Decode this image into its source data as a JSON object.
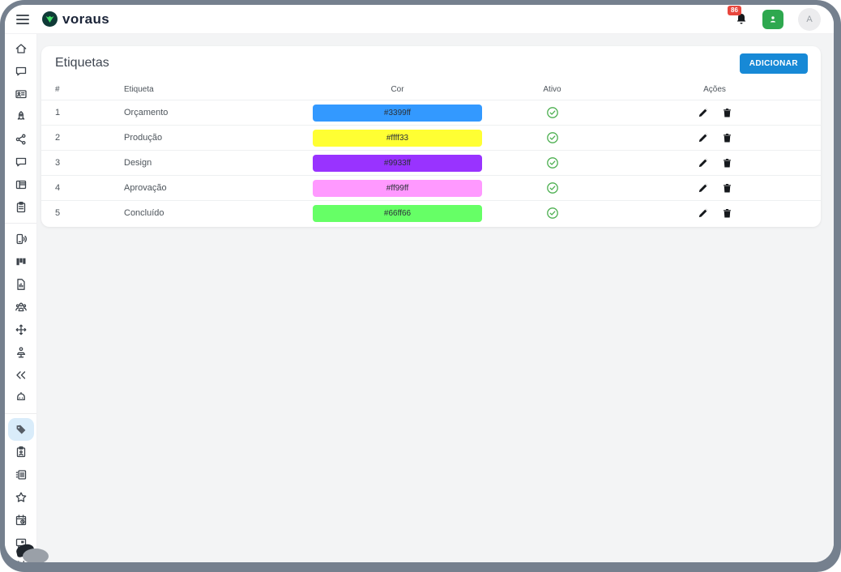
{
  "app": {
    "logo_text": "voraus",
    "topbar": {
      "notification_count": "86",
      "avatar_initial": "A"
    }
  },
  "sidebar": {
    "groups": [
      {
        "items": [
          {
            "name": "home",
            "icon": "home-icon"
          },
          {
            "name": "chat",
            "icon": "chat-icon"
          },
          {
            "name": "contacts",
            "icon": "id-card-icon"
          },
          {
            "name": "rocket",
            "icon": "rocket-icon"
          },
          {
            "name": "share",
            "icon": "share-nodes-icon"
          },
          {
            "name": "messages",
            "icon": "chat-icon"
          },
          {
            "name": "board",
            "icon": "table-grid-icon"
          },
          {
            "name": "clipboard",
            "icon": "clipboard-icon"
          }
        ]
      },
      {
        "items": [
          {
            "name": "calls",
            "icon": "phone-volume-icon"
          },
          {
            "name": "kanban",
            "icon": "kanban-icon"
          },
          {
            "name": "reports",
            "icon": "file-chart-icon"
          },
          {
            "name": "team",
            "icon": "team-icon"
          },
          {
            "name": "move",
            "icon": "move-icon"
          },
          {
            "name": "workstation",
            "icon": "person-desk-icon"
          },
          {
            "name": "replies",
            "icon": "reply-all-icon"
          },
          {
            "name": "bot",
            "icon": "robot-icon"
          }
        ]
      },
      {
        "items": [
          {
            "name": "etiquetas",
            "icon": "tag-icon",
            "active": true
          },
          {
            "name": "tasks",
            "icon": "clipboard-user-icon"
          },
          {
            "name": "lists",
            "icon": "list-box-icon"
          },
          {
            "name": "favorites",
            "icon": "star-icon"
          },
          {
            "name": "schedule",
            "icon": "calendar-clock-icon"
          },
          {
            "name": "feedback",
            "icon": "comment-box-icon"
          },
          {
            "name": "flows",
            "icon": "branch-split-icon"
          }
        ]
      }
    ]
  },
  "page": {
    "title": "Etiquetas",
    "add_button_label": "ADICIONAR"
  },
  "table": {
    "headers": [
      "#",
      "Etiqueta",
      "Cor",
      "Ativo",
      "Ações"
    ],
    "rows": [
      {
        "num": "1",
        "label": "Orçamento",
        "color": "#3399ff",
        "active": true
      },
      {
        "num": "2",
        "label": "Produção",
        "color": "#ffff33",
        "active": true
      },
      {
        "num": "3",
        "label": "Design",
        "color": "#9933ff",
        "active": true
      },
      {
        "num": "4",
        "label": "Aprovação",
        "color": "#ff99ff",
        "active": true
      },
      {
        "num": "5",
        "label": "Concluído",
        "color": "#66ff66",
        "active": true
      }
    ]
  },
  "colors": {
    "accent_blue": "#1789d6",
    "active_check_green": "#4caf50",
    "badge_red": "#e8463d",
    "support_green": "#2ea84f",
    "frame_gray": "#75808e",
    "sidebar_active_bg": "#d9ecfa",
    "logo_mark_dark": "#0f3a37",
    "logo_mark_green": "#42e268"
  }
}
